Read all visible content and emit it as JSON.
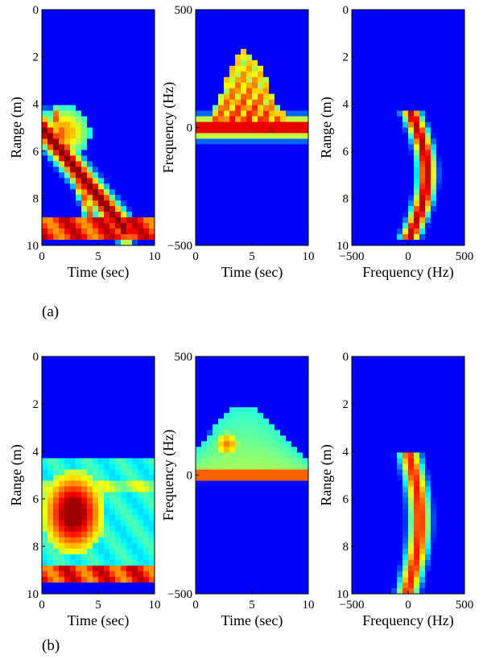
{
  "figure": {
    "labels": [
      "(a)",
      "(b)"
    ]
  },
  "colors": {
    "background": "#1f2d8c",
    "colormap": "jet"
  },
  "chart_data": [
    {
      "id": "a1",
      "type": "heatmap",
      "panel": "(a)",
      "mode": "range-time",
      "xlabel": "Time (sec)",
      "ylabel": "Range (m)",
      "xlim": [
        0,
        10
      ],
      "ylim": [
        10,
        0
      ],
      "xticks": [
        "0",
        "5",
        "10"
      ],
      "yticks": [
        "0",
        "2",
        "4",
        "6",
        "8",
        "10"
      ],
      "bands": [
        {
          "y0": 0.3,
          "y1": 1.3,
          "x0": 0,
          "x1": 10,
          "level": 0.95
        }
      ],
      "tracks": [
        {
          "x0": 0.0,
          "y0": 5.0,
          "x1": 7.5,
          "y1": 0.6,
          "width": 0.9,
          "level": 1.0
        },
        {
          "x0": 1.2,
          "y0": 5.5,
          "x1": 4.5,
          "y1": 1.0,
          "width": 0.6,
          "level": 0.8
        }
      ],
      "region": {
        "x0": 0.0,
        "x1": 4.0,
        "y0": 3.8,
        "y1": 5.8,
        "level": 0.7
      }
    },
    {
      "id": "a2",
      "type": "heatmap",
      "panel": "(a)",
      "mode": "spectrogram",
      "xlabel": "Time (sec)",
      "ylabel": "Frequency (Hz)",
      "xlim": [
        0,
        10
      ],
      "ylim": [
        -500,
        500
      ],
      "xticks": [
        "0",
        "5",
        "10"
      ],
      "yticks": [
        "-500",
        "0",
        "500"
      ],
      "baseline": {
        "y": 0,
        "width": 35,
        "level": 0.95
      },
      "envelope": {
        "t0": 1.5,
        "t1": 8.0,
        "peak_t": 3.8,
        "peak_f": 270,
        "level": 0.9
      },
      "stripes": 8
    },
    {
      "id": "a3",
      "type": "heatmap",
      "panel": "(a)",
      "mode": "range-doppler",
      "xlabel": "Frequency (Hz)",
      "ylabel": "Range (m)",
      "xlim": [
        -500,
        500
      ],
      "ylim": [
        10,
        0
      ],
      "xticks": [
        "-500",
        "0",
        "500"
      ],
      "yticks": [
        "0",
        "2",
        "4",
        "6",
        "8",
        "10"
      ],
      "curve": {
        "y0": 0.2,
        "y1": 5.8,
        "f_start": 0,
        "f_mid": 160,
        "f_end": 10,
        "width": 150,
        "level": 0.95
      }
    },
    {
      "id": "b1",
      "type": "heatmap",
      "panel": "(b)",
      "mode": "range-time",
      "xlabel": "Time (sec)",
      "ylabel": "Range (m)",
      "xlim": [
        0,
        10
      ],
      "ylim": [
        10,
        0
      ],
      "xticks": [
        "0",
        "5",
        "10"
      ],
      "yticks": [
        "0",
        "2",
        "4",
        "6",
        "8",
        "10"
      ],
      "bands": [
        {
          "y0": 0.4,
          "y1": 1.2,
          "x0": 0,
          "x1": 10,
          "level": 0.95
        },
        {
          "y0": 1.2,
          "y1": 5.8,
          "x0": 0,
          "x1": 10,
          "level": 0.45
        },
        {
          "y0": 4.2,
          "y1": 4.8,
          "x0": 0,
          "x1": 10,
          "level": 0.62
        }
      ],
      "tracks": [],
      "region": {
        "x0": 0.3,
        "x1": 5.3,
        "y0": 1.8,
        "y1": 5.0,
        "level": 0.97
      }
    },
    {
      "id": "b2",
      "type": "heatmap",
      "panel": "(b)",
      "mode": "spectrogram",
      "xlabel": "Time (sec)",
      "ylabel": "Frequency (Hz)",
      "xlim": [
        0,
        10
      ],
      "ylim": [
        -500,
        500
      ],
      "xticks": [
        "0",
        "5",
        "10"
      ],
      "yticks": [
        "-500",
        "0",
        "500"
      ],
      "baseline": {
        "y": 0,
        "width": 18,
        "level": 0.97
      },
      "envelope": {
        "t0": -0.5,
        "t1": 10.5,
        "peak_t": 2.8,
        "peak_f": 240,
        "level": 0.55
      },
      "blob": {
        "t": 2.8,
        "f": 130,
        "rt": 1.4,
        "rf": 70,
        "level": 0.75
      },
      "stripes": 0
    },
    {
      "id": "b3",
      "type": "heatmap",
      "panel": "(b)",
      "mode": "range-doppler",
      "xlabel": "Frequency (Hz)",
      "ylabel": "Range (m)",
      "xlim": [
        -500,
        500
      ],
      "ylim": [
        10,
        0
      ],
      "xticks": [
        "-500",
        "0",
        "500"
      ],
      "yticks": [
        "0",
        "2",
        "4",
        "6",
        "8",
        "10"
      ],
      "curve": {
        "y0": 0.1,
        "y1": 6.0,
        "f_start": -5,
        "f_mid": 100,
        "f_end": 0,
        "width": 170,
        "level": 0.85
      }
    }
  ]
}
